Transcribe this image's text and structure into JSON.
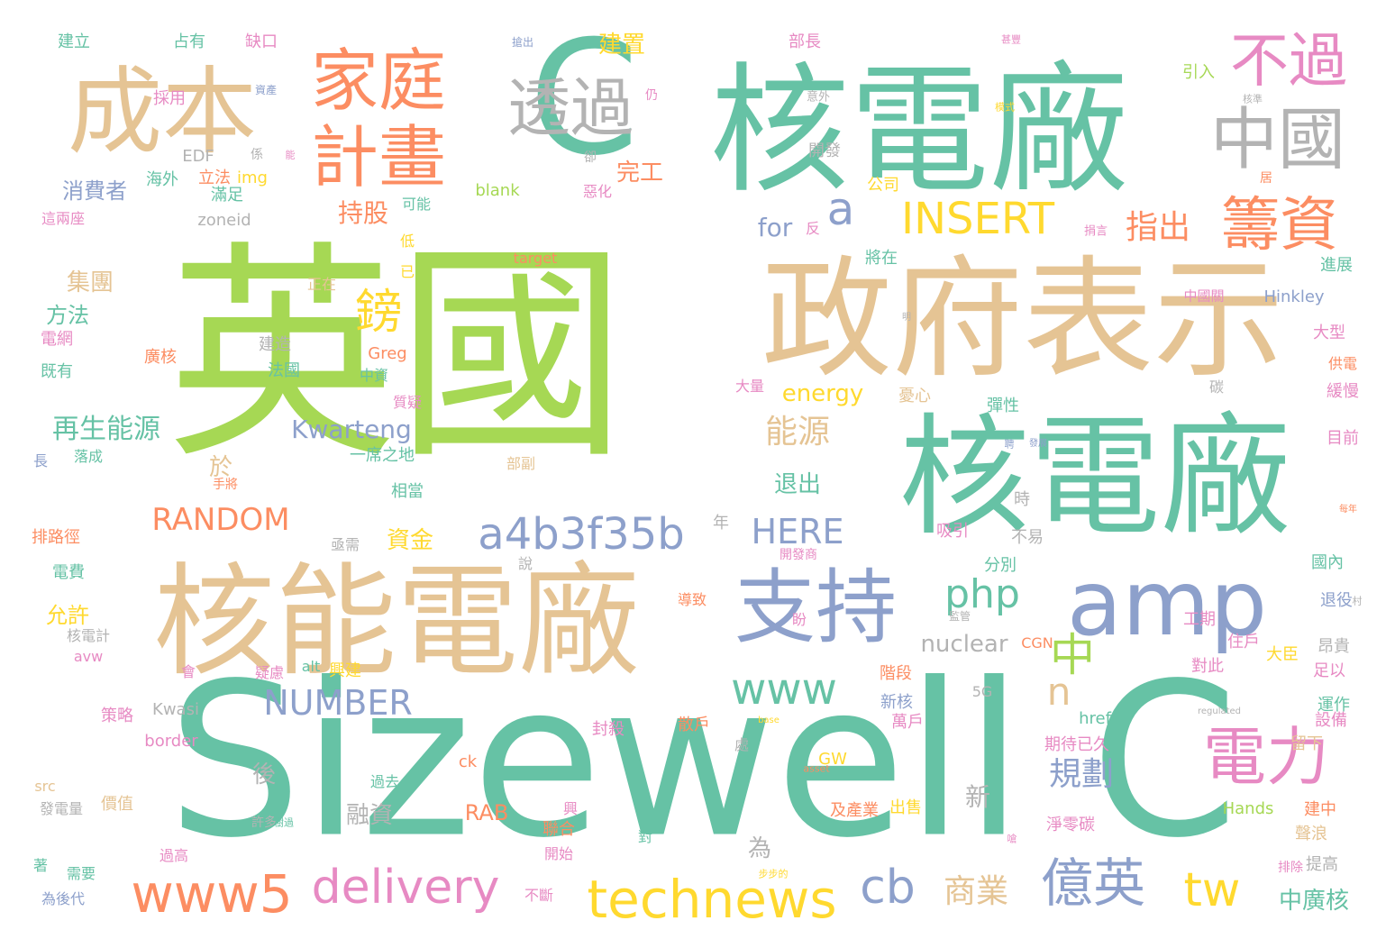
{
  "palette": {
    "green": "#66c2a5",
    "orange": "#fc8d62",
    "blue": "#8da0cb",
    "pink": "#e78ac3",
    "lime": "#a6d854",
    "yellow": "#ffd92f",
    "tan": "#e5c494",
    "gray": "#b3b3b3"
  },
  "words": [
    {
      "text": "Sizewell C",
      "color": "green"
    },
    {
      "text": "英國",
      "color": "lime"
    },
    {
      "text": "核電廠",
      "color": "green"
    },
    {
      "text": "核電廠",
      "color": "green"
    },
    {
      "text": "政府表示",
      "color": "tan"
    },
    {
      "text": "核能電廠",
      "color": "tan"
    },
    {
      "text": "C",
      "color": "green"
    },
    {
      "text": "成本",
      "color": "tan"
    },
    {
      "text": "支持",
      "color": "blue"
    },
    {
      "text": "amp",
      "color": "blue"
    },
    {
      "text": "家庭",
      "color": "orange"
    },
    {
      "text": "計畫",
      "color": "orange"
    },
    {
      "text": "透過",
      "color": "gray"
    },
    {
      "text": "中國",
      "color": "gray"
    },
    {
      "text": "不過",
      "color": "pink"
    },
    {
      "text": "籌資",
      "color": "orange"
    },
    {
      "text": "電力",
      "color": "pink"
    },
    {
      "text": "technews",
      "color": "yellow"
    },
    {
      "text": "www5",
      "color": "orange"
    },
    {
      "text": "delivery",
      "color": "pink"
    },
    {
      "text": "億英",
      "color": "blue"
    },
    {
      "text": "a4b3f35b",
      "color": "blue"
    },
    {
      "text": "www",
      "color": "green"
    },
    {
      "text": "INSERT",
      "color": "yellow"
    },
    {
      "text": "tw",
      "color": "yellow"
    },
    {
      "text": "cb",
      "color": "blue"
    },
    {
      "text": "php",
      "color": "green"
    },
    {
      "text": "RANDOM",
      "color": "orange"
    },
    {
      "text": "NUMBER",
      "color": "blue"
    },
    {
      "text": "HERE",
      "color": "blue"
    },
    {
      "text": "鎊",
      "color": "yellow"
    },
    {
      "text": "中",
      "color": "lime"
    },
    {
      "text": "a",
      "color": "blue"
    },
    {
      "text": "n",
      "color": "tan"
    },
    {
      "text": "指出",
      "color": "orange"
    },
    {
      "text": "能源",
      "color": "tan"
    },
    {
      "text": "規劃",
      "color": "blue"
    },
    {
      "text": "商業",
      "color": "tan"
    },
    {
      "text": "再生能源",
      "color": "green"
    },
    {
      "text": "Kwarteng",
      "color": "blue"
    },
    {
      "text": "nuclear",
      "color": "gray"
    },
    {
      "text": "energy",
      "color": "yellow"
    },
    {
      "text": "for",
      "color": "blue"
    },
    {
      "text": "持股",
      "color": "orange"
    },
    {
      "text": "消費者",
      "color": "blue"
    },
    {
      "text": "集團",
      "color": "tan"
    },
    {
      "text": "方法",
      "color": "green"
    },
    {
      "text": "資金",
      "color": "yellow"
    },
    {
      "text": "退出",
      "color": "green"
    },
    {
      "text": "融資",
      "color": "gray"
    },
    {
      "text": "允許",
      "color": "yellow"
    },
    {
      "text": "中廣核",
      "color": "green"
    },
    {
      "text": "完工",
      "color": "orange"
    },
    {
      "text": "建置",
      "color": "yellow"
    },
    {
      "text": "RAB",
      "color": "orange"
    },
    {
      "text": "新",
      "color": "gray"
    },
    {
      "text": "後",
      "color": "gray"
    },
    {
      "text": "於",
      "color": "tan"
    },
    {
      "text": "為",
      "color": "gray"
    },
    {
      "text": "建立",
      "color": "green"
    },
    {
      "text": "占有",
      "color": "green"
    },
    {
      "text": "缺口",
      "color": "pink"
    },
    {
      "text": "部長",
      "color": "pink"
    },
    {
      "text": "採用",
      "color": "pink"
    },
    {
      "text": "EDF",
      "color": "gray"
    },
    {
      "text": "海外",
      "color": "green"
    },
    {
      "text": "立法",
      "color": "orange"
    },
    {
      "text": "img",
      "color": "yellow"
    },
    {
      "text": "滿足",
      "color": "green"
    },
    {
      "text": "這兩座",
      "color": "pink"
    },
    {
      "text": "zoneid",
      "color": "gray"
    },
    {
      "text": "可能",
      "color": "green"
    },
    {
      "text": "blank",
      "color": "lime"
    },
    {
      "text": "target",
      "color": "orange"
    },
    {
      "text": "惡化",
      "color": "pink"
    },
    {
      "text": "公司",
      "color": "yellow"
    },
    {
      "text": "開發",
      "color": "gray"
    },
    {
      "text": "引入",
      "color": "lime"
    },
    {
      "text": "將在",
      "color": "green"
    },
    {
      "text": "Hinkley",
      "color": "blue"
    },
    {
      "text": "中國關",
      "color": "pink"
    },
    {
      "text": "進展",
      "color": "green"
    },
    {
      "text": "大型",
      "color": "pink"
    },
    {
      "text": "供電",
      "color": "orange"
    },
    {
      "text": "緩慢",
      "color": "pink"
    },
    {
      "text": "目前",
      "color": "pink"
    },
    {
      "text": "正在",
      "color": "tan"
    },
    {
      "text": "低",
      "color": "yellow"
    },
    {
      "text": "已",
      "color": "yellow"
    },
    {
      "text": "電網",
      "color": "pink"
    },
    {
      "text": "既有",
      "color": "green"
    },
    {
      "text": "廣核",
      "color": "orange"
    },
    {
      "text": "建造",
      "color": "gray"
    },
    {
      "text": "法國",
      "color": "green"
    },
    {
      "text": "Greg",
      "color": "orange"
    },
    {
      "text": "中資",
      "color": "green"
    },
    {
      "text": "質疑",
      "color": "pink"
    },
    {
      "text": "大量",
      "color": "pink"
    },
    {
      "text": "憂心",
      "color": "tan"
    },
    {
      "text": "彈性",
      "color": "green"
    },
    {
      "text": "碳",
      "color": "gray"
    },
    {
      "text": "落成",
      "color": "green"
    },
    {
      "text": "長",
      "color": "blue"
    },
    {
      "text": "一席之地",
      "color": "green"
    },
    {
      "text": "手將",
      "color": "orange"
    },
    {
      "text": "部副",
      "color": "tan"
    },
    {
      "text": "相當",
      "color": "green"
    },
    {
      "text": "時",
      "color": "gray"
    },
    {
      "text": "年",
      "color": "gray"
    },
    {
      "text": "亟需",
      "color": "gray"
    },
    {
      "text": "不易",
      "color": "gray"
    },
    {
      "text": "排路徑",
      "color": "orange"
    },
    {
      "text": "吸引",
      "color": "pink"
    },
    {
      "text": "分別",
      "color": "green"
    },
    {
      "text": "開發商",
      "color": "pink"
    },
    {
      "text": "國內",
      "color": "green"
    },
    {
      "text": "退役",
      "color": "blue"
    },
    {
      "text": "電費",
      "color": "green"
    },
    {
      "text": "說",
      "color": "gray"
    },
    {
      "text": "導致",
      "color": "orange"
    },
    {
      "text": "盼",
      "color": "pink"
    },
    {
      "text": "監管",
      "color": "gray"
    },
    {
      "text": "工期",
      "color": "pink"
    },
    {
      "text": "住戶",
      "color": "pink"
    },
    {
      "text": "昂貴",
      "color": "gray"
    },
    {
      "text": "核電計",
      "color": "gray"
    },
    {
      "text": "avw",
      "color": "pink"
    },
    {
      "text": "會",
      "color": "pink"
    },
    {
      "text": "疑慮",
      "color": "pink"
    },
    {
      "text": "alt",
      "color": "green"
    },
    {
      "text": "興建",
      "color": "yellow"
    },
    {
      "text": "CGN",
      "color": "orange"
    },
    {
      "text": "階段",
      "color": "orange"
    },
    {
      "text": "大臣",
      "color": "yellow"
    },
    {
      "text": "足以",
      "color": "pink"
    },
    {
      "text": "對此",
      "color": "pink"
    },
    {
      "text": "策略",
      "color": "pink"
    },
    {
      "text": "Kwasi",
      "color": "gray"
    },
    {
      "text": "5G",
      "color": "gray"
    },
    {
      "text": "新核",
      "color": "blue"
    },
    {
      "text": "散戶",
      "color": "orange"
    },
    {
      "text": "萬戶",
      "color": "pink"
    },
    {
      "text": "設備",
      "color": "pink"
    },
    {
      "text": "運作",
      "color": "green"
    },
    {
      "text": "border",
      "color": "pink"
    },
    {
      "text": "處",
      "color": "gray"
    },
    {
      "text": "期待已久",
      "color": "pink"
    },
    {
      "text": "href",
      "color": "green"
    },
    {
      "text": "留下",
      "color": "tan"
    },
    {
      "text": "封殺",
      "color": "pink"
    },
    {
      "text": "ck",
      "color": "orange"
    },
    {
      "text": "GW",
      "color": "yellow"
    },
    {
      "text": "src",
      "color": "tan"
    },
    {
      "text": "價值",
      "color": "tan"
    },
    {
      "text": "發電量",
      "color": "gray"
    },
    {
      "text": "過去",
      "color": "green"
    },
    {
      "text": "許多",
      "color": "gray"
    },
    {
      "text": "興",
      "color": "pink"
    },
    {
      "text": "聯合",
      "color": "orange"
    },
    {
      "text": "及產業",
      "color": "orange"
    },
    {
      "text": "出售",
      "color": "yellow"
    },
    {
      "text": "淨零碳",
      "color": "pink"
    },
    {
      "text": "Hands",
      "color": "lime"
    },
    {
      "text": "建中",
      "color": "orange"
    },
    {
      "text": "聲浪",
      "color": "tan"
    },
    {
      "text": "對",
      "color": "green"
    },
    {
      "text": "開始",
      "color": "pink"
    },
    {
      "text": "過高",
      "color": "pink"
    },
    {
      "text": "著",
      "color": "green"
    },
    {
      "text": "需要",
      "color": "green"
    },
    {
      "text": "為後代",
      "color": "blue"
    },
    {
      "text": "不斷",
      "color": "pink"
    },
    {
      "text": "提高",
      "color": "gray"
    },
    {
      "text": "排除",
      "color": "pink"
    },
    {
      "text": "仍",
      "color": "pink"
    },
    {
      "text": "卻",
      "color": "gray"
    },
    {
      "text": "係",
      "color": "gray"
    },
    {
      "text": "反",
      "color": "pink"
    },
    {
      "text": "居",
      "color": "orange"
    },
    {
      "text": "捐言",
      "color": "pink"
    },
    {
      "text": "意外",
      "color": "gray"
    },
    {
      "text": "資產",
      "color": "blue"
    },
    {
      "text": "搶出",
      "color": "blue"
    },
    {
      "text": "甚豐",
      "color": "pink"
    },
    {
      "text": "模式",
      "color": "yellow"
    },
    {
      "text": "核準",
      "color": "gray"
    },
    {
      "text": "能",
      "color": "pink"
    },
    {
      "text": "明",
      "color": "gray"
    },
    {
      "text": "發展",
      "color": "blue"
    },
    {
      "text": "聘",
      "color": "blue"
    },
    {
      "text": "regulated",
      "color": "gray"
    },
    {
      "text": "base",
      "color": "yellow"
    },
    {
      "text": "asset",
      "color": "orange"
    },
    {
      "text": "樹過",
      "color": "green"
    },
    {
      "text": "嗆",
      "color": "pink"
    },
    {
      "text": "步步的",
      "color": "yellow"
    },
    {
      "text": "每年",
      "color": "orange"
    },
    {
      "text": "村",
      "color": "gray"
    }
  ]
}
